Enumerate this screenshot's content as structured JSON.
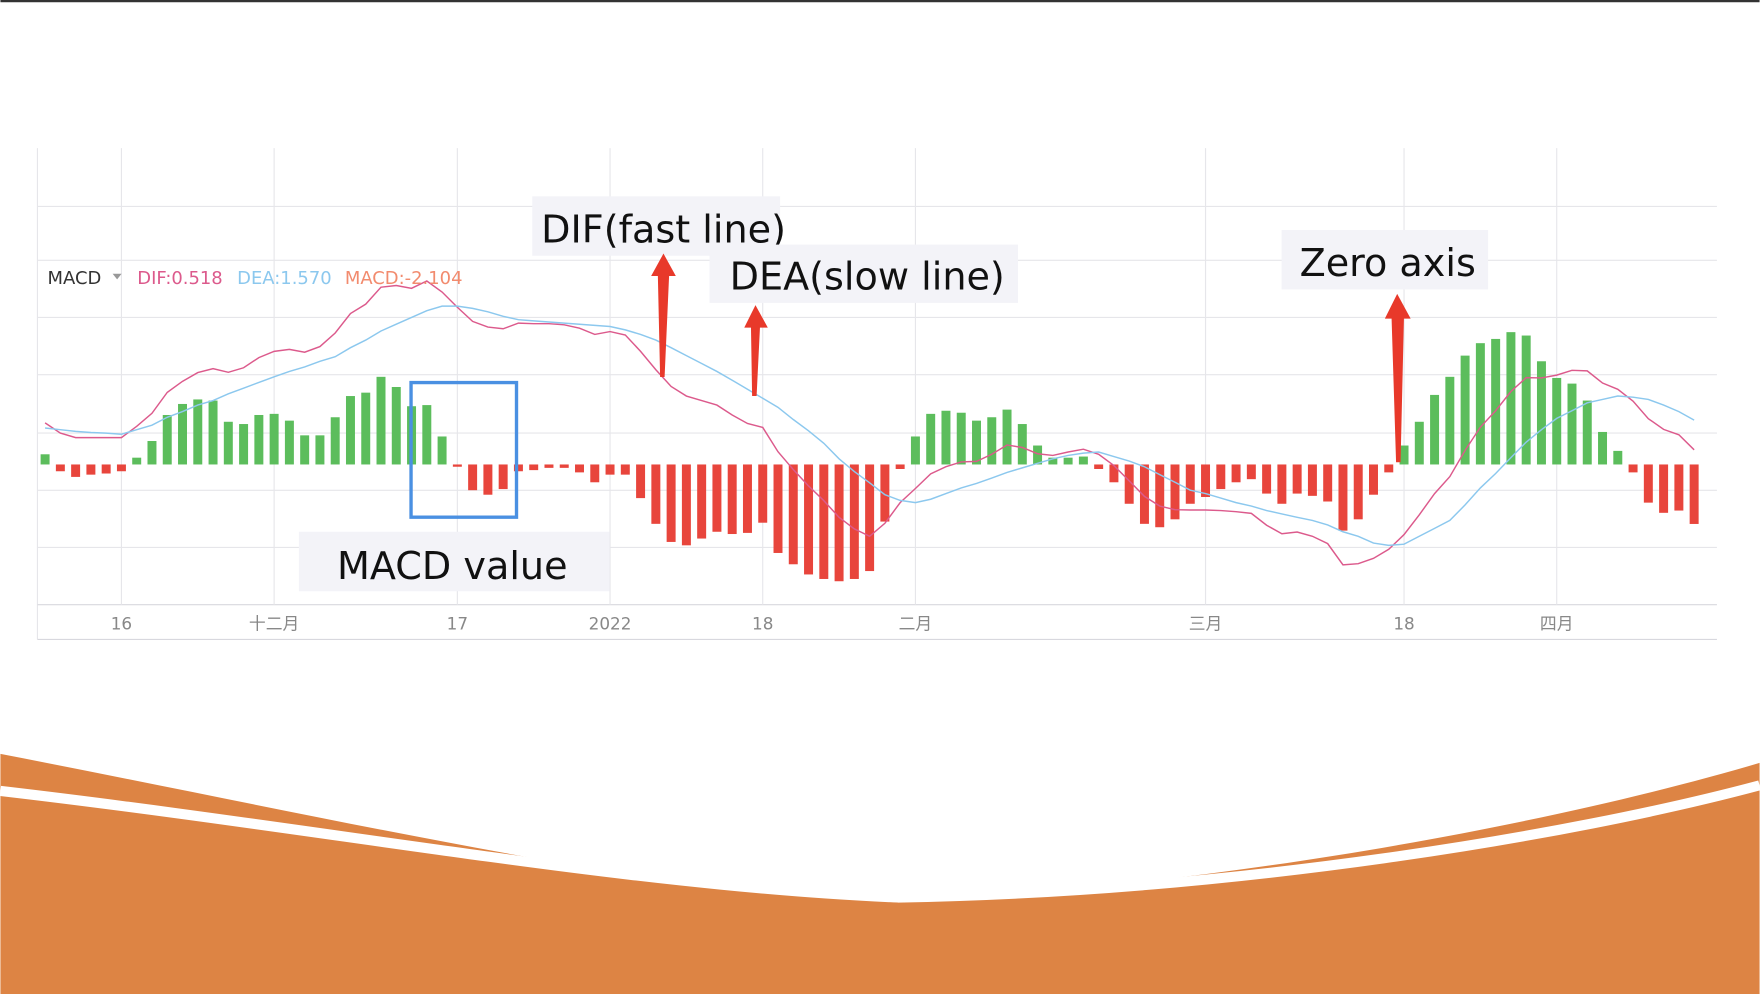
{
  "chart_data": {
    "type": "macd",
    "indicator": "MACD",
    "categories": [
      null,
      null,
      null,
      null,
      null,
      "16",
      null,
      null,
      null,
      null,
      null,
      null,
      null,
      null,
      null,
      "十二月",
      null,
      null,
      null,
      null,
      null,
      null,
      null,
      null,
      null,
      null,
      null,
      "17",
      null,
      null,
      null,
      null,
      null,
      null,
      null,
      null,
      null,
      "2022",
      null,
      null,
      null,
      null,
      null,
      null,
      null,
      null,
      null,
      "18",
      null,
      null,
      null,
      null,
      null,
      null,
      null,
      null,
      null,
      "二月",
      null,
      null,
      null,
      null,
      null,
      null,
      null,
      null,
      null,
      null,
      null,
      null,
      null,
      null,
      null,
      null,
      null,
      null,
      "三月",
      null,
      null,
      null,
      null,
      null,
      null,
      null,
      null,
      null,
      null,
      null,
      null,
      "18",
      null,
      null,
      null,
      null,
      null,
      null,
      null,
      null,
      null,
      "四月",
      null,
      null,
      null,
      null,
      null,
      null,
      null,
      null,
      null
    ],
    "ylim": [
      -4.96,
      11.19
    ],
    "series": [
      {
        "name": "DIF:0.518",
        "kind": "line",
        "color": "#dc5a8c",
        "values": [
          1.47,
          1.11,
          0.95,
          0.95,
          0.95,
          0.95,
          1.35,
          1.81,
          2.55,
          2.94,
          3.25,
          3.39,
          3.26,
          3.42,
          3.78,
          4.0,
          4.07,
          3.97,
          4.17,
          4.65,
          5.34,
          5.67,
          6.27,
          6.33,
          6.23,
          6.49,
          6.1,
          5.56,
          5.06,
          4.86,
          4.8,
          5.0,
          4.98,
          4.98,
          4.94,
          4.82,
          4.6,
          4.7,
          4.58,
          4.0,
          3.35,
          2.76,
          2.42,
          2.26,
          2.1,
          1.75,
          1.45,
          1.31,
          0.45,
          -0.18,
          -0.76,
          -1.28,
          -1.87,
          -2.28,
          -2.54,
          -2.08,
          -1.35,
          -0.85,
          -0.33,
          -0.08,
          0.09,
          0.11,
          0.36,
          0.69,
          0.6,
          0.38,
          0.32,
          0.44,
          0.54,
          0.36,
          -0.04,
          -0.58,
          -1.13,
          -1.47,
          -1.6,
          -1.61,
          -1.61,
          -1.63,
          -1.67,
          -1.73,
          -2.15,
          -2.45,
          -2.39,
          -2.54,
          -2.8,
          -3.55,
          -3.51,
          -3.32,
          -3.0,
          -2.48,
          -1.78,
          -1.03,
          -0.43,
          0.5,
          1.32,
          1.9,
          2.58,
          3.07,
          3.06,
          3.16,
          3.33,
          3.31,
          2.88,
          2.66,
          2.24,
          1.62,
          1.24,
          1.05,
          0.518
        ]
      },
      {
        "name": "DEA:1.570",
        "kind": "line",
        "color": "#8cc8ee",
        "values": [
          1.29,
          1.23,
          1.17,
          1.13,
          1.11,
          1.07,
          1.23,
          1.39,
          1.67,
          1.87,
          2.1,
          2.26,
          2.5,
          2.7,
          2.9,
          3.1,
          3.29,
          3.45,
          3.65,
          3.81,
          4.13,
          4.4,
          4.72,
          4.96,
          5.2,
          5.44,
          5.6,
          5.6,
          5.52,
          5.4,
          5.24,
          5.12,
          5.08,
          5.04,
          5.0,
          4.96,
          4.92,
          4.88,
          4.76,
          4.6,
          4.4,
          4.13,
          3.85,
          3.57,
          3.29,
          2.98,
          2.66,
          2.34,
          2.02,
          1.59,
          1.19,
          0.75,
          0.2,
          -0.25,
          -0.65,
          -1.07,
          -1.27,
          -1.35,
          -1.23,
          -1.03,
          -0.83,
          -0.67,
          -0.48,
          -0.28,
          -0.12,
          0.04,
          0.2,
          0.32,
          0.4,
          0.44,
          0.28,
          0.12,
          -0.08,
          -0.36,
          -0.63,
          -0.91,
          -1.03,
          -1.19,
          -1.35,
          -1.47,
          -1.63,
          -1.75,
          -1.87,
          -1.98,
          -2.14,
          -2.38,
          -2.54,
          -2.78,
          -2.86,
          -2.82,
          -2.54,
          -2.26,
          -1.98,
          -1.43,
          -0.83,
          -0.32,
          0.24,
          0.79,
          1.23,
          1.63,
          1.9,
          2.18,
          2.3,
          2.42,
          2.38,
          2.3,
          2.1,
          1.87,
          1.57
        ]
      },
      {
        "name": "MACD:-2.104",
        "kind": "bar",
        "color": "#e8453c",
        "up_color": "#5cbd5c",
        "label_color": "#f28b6e",
        "values": [
          0.36,
          -0.24,
          -0.44,
          -0.36,
          -0.32,
          -0.24,
          0.24,
          0.83,
          1.75,
          2.14,
          2.3,
          2.26,
          1.51,
          1.43,
          1.75,
          1.79,
          1.55,
          1.03,
          1.03,
          1.67,
          2.42,
          2.54,
          3.1,
          2.74,
          2.06,
          2.1,
          0.99,
          -0.08,
          -0.91,
          -1.07,
          -0.87,
          -0.24,
          -0.2,
          -0.12,
          -0.12,
          -0.28,
          -0.63,
          -0.36,
          -0.36,
          -1.19,
          -2.1,
          -2.74,
          -2.86,
          -2.62,
          -2.38,
          -2.46,
          -2.42,
          -2.06,
          -3.13,
          -3.53,
          -3.89,
          -4.05,
          -4.13,
          -4.05,
          -3.77,
          -2.02,
          -0.16,
          0.99,
          1.79,
          1.9,
          1.83,
          1.55,
          1.67,
          1.94,
          1.43,
          0.67,
          0.24,
          0.24,
          0.28,
          -0.16,
          -0.63,
          -1.39,
          -2.1,
          -2.22,
          -1.94,
          -1.39,
          -1.15,
          -0.87,
          -0.63,
          -0.52,
          -1.03,
          -1.39,
          -1.03,
          -1.11,
          -1.31,
          -2.34,
          -1.94,
          -1.07,
          -0.28,
          0.67,
          1.51,
          2.46,
          3.1,
          3.85,
          4.29,
          4.44,
          4.68,
          4.56,
          3.65,
          3.06,
          2.86,
          2.26,
          1.15,
          0.48,
          -0.28,
          -1.35,
          -1.71,
          -1.63,
          -2.104
        ]
      }
    ],
    "annotations": [
      "DIF(fast line)",
      "DEA(slow line)",
      "Zero axis",
      "MACD value"
    ]
  }
}
